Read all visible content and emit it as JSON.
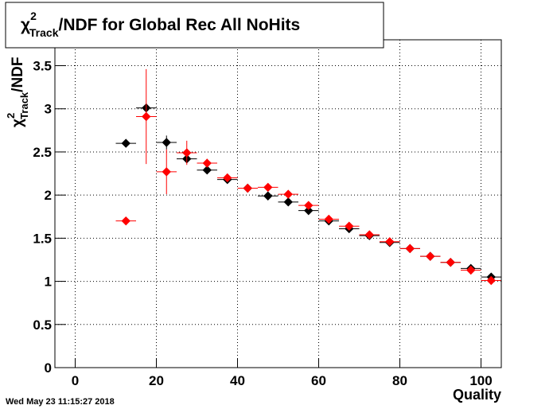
{
  "chart_data": {
    "type": "scatter",
    "title": {
      "symbol": "χ",
      "sup": "2",
      "sub": "Track",
      "text": "/NDF for Global Rec All NoHits"
    },
    "y_label": {
      "symbol": "χ",
      "sup": "2",
      "sub": "Track",
      "text": "/NDF"
    },
    "x_label": "Quality",
    "timestamp": "Wed May 23 11:15:27 2018",
    "xlim": [
      -5,
      105
    ],
    "ylim": [
      0,
      3.8
    ],
    "xticks": [
      0,
      20,
      40,
      60,
      80,
      100
    ],
    "yticks": [
      0,
      0.5,
      1,
      1.5,
      2,
      2.5,
      3,
      3.5
    ],
    "grid": true,
    "xerr": 2.5,
    "x": [
      12.5,
      17.5,
      22.5,
      27.5,
      32.5,
      37.5,
      42.5,
      47.5,
      52.5,
      57.5,
      62.5,
      67.5,
      72.5,
      77.5,
      82.5,
      87.5,
      92.5,
      97.5,
      102.5
    ],
    "series": [
      {
        "color": "#000000",
        "values": [
          2.6,
          3.01,
          2.61,
          2.42,
          2.29,
          2.18,
          2.08,
          1.99,
          1.92,
          1.82,
          1.7,
          1.61,
          1.53,
          1.45,
          1.38,
          1.29,
          1.22,
          1.15,
          1.05
        ],
        "errors": [
          0.04,
          0.05,
          0.08,
          0.04,
          0.03,
          0.02,
          0.02,
          0.02,
          0.02,
          0.02,
          0.02,
          0.02,
          0.02,
          0.02,
          0.02,
          0.02,
          0.02,
          0.02,
          0.02
        ]
      },
      {
        "color": "#ff0000",
        "values": [
          1.7,
          2.91,
          2.27,
          2.49,
          2.37,
          2.2,
          2.08,
          2.09,
          2.01,
          1.88,
          1.72,
          1.64,
          1.54,
          1.46,
          1.38,
          1.29,
          1.22,
          1.13,
          1.01
        ],
        "errors": [
          0.01,
          0.55,
          0.26,
          0.14,
          0.05,
          0.03,
          0.02,
          0.02,
          0.02,
          0.02,
          0.02,
          0.02,
          0.02,
          0.02,
          0.02,
          0.02,
          0.02,
          0.02,
          0.02
        ]
      }
    ]
  }
}
